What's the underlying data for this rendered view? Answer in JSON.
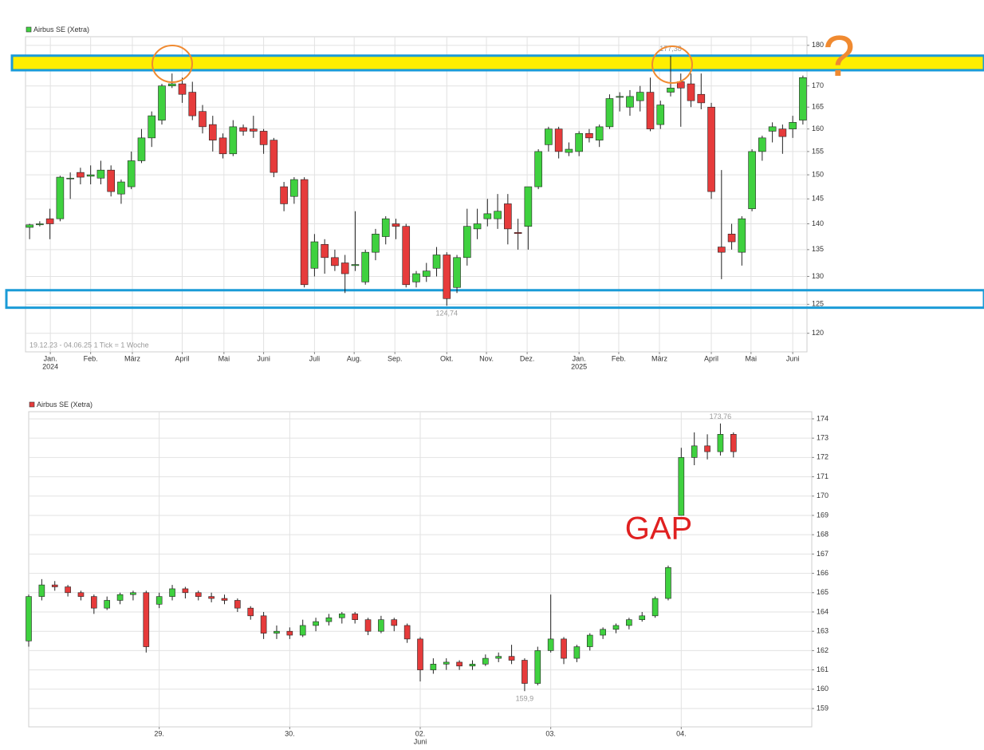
{
  "chart_data": [
    {
      "type": "candlestick",
      "legend": "Airbus SE (Xetra)",
      "legend_color": "#3fd13f",
      "note": "19.12.23 - 04.06.25   1 Tick = 1 Woche",
      "marker": "?",
      "up_color": "#3fd13f",
      "down_color": "#e63b3b",
      "grid": true,
      "log": true,
      "xlim": [
        -0.4,
        76.4
      ],
      "ylim": [
        116.9,
        182.2
      ],
      "yticks": [
        120,
        125,
        130,
        135,
        140,
        145,
        150,
        155,
        160,
        165,
        170,
        175,
        180
      ],
      "xticks": [
        {
          "value": 2.04,
          "label": "Jan."
        },
        {
          "value": 6.0,
          "label": "Feb."
        },
        {
          "value": 10.1,
          "label": "März"
        },
        {
          "value": 15.0,
          "label": "April"
        },
        {
          "value": 19.1,
          "label": "Mai"
        },
        {
          "value": 23.0,
          "label": "Juni"
        },
        {
          "value": 28.0,
          "label": "Juli"
        },
        {
          "value": 31.9,
          "label": "Aug."
        },
        {
          "value": 35.9,
          "label": "Sep."
        },
        {
          "value": 41.0,
          "label": "Okt."
        },
        {
          "value": 44.9,
          "label": "Nov."
        },
        {
          "value": 48.9,
          "label": "Dez."
        },
        {
          "value": 54.0,
          "label": "Jan."
        },
        {
          "value": 57.9,
          "label": "Feb."
        },
        {
          "value": 61.9,
          "label": "März"
        },
        {
          "value": 67.0,
          "label": "April"
        },
        {
          "value": 70.9,
          "label": "Mai"
        },
        {
          "value": 75.0,
          "label": "Juni"
        }
      ],
      "xticks_sub": [
        {
          "value": 2.04,
          "label": "2024"
        },
        {
          "value": 54.0,
          "label": "2025"
        }
      ],
      "open": [
        139.3,
        139.8,
        141,
        141,
        149.3,
        150.5,
        149.7,
        149.3,
        151,
        146,
        147.5,
        153,
        158,
        162,
        170,
        170.5,
        168.5,
        164,
        161,
        158,
        154.5,
        160.3,
        160,
        159.5,
        157.5,
        147.5,
        145.5,
        149,
        131.5,
        136,
        133.5,
        132.5,
        132,
        129,
        134.5,
        137.5,
        140,
        139.5,
        129,
        130,
        131.5,
        134,
        128,
        133.5,
        139,
        141,
        141,
        144,
        138.3,
        139.5,
        147.5,
        156.5,
        160,
        154.8,
        155,
        159,
        157.5,
        160.5,
        167.3,
        165,
        166.5,
        168.5,
        161,
        168.5,
        171,
        170.5,
        168,
        165,
        135.5,
        138,
        134.5,
        143,
        155,
        159.5,
        160,
        160,
        162
      ],
      "high": [
        140,
        140.5,
        143,
        149.8,
        150.5,
        151.5,
        152,
        153,
        152,
        149,
        155,
        160,
        164,
        170.5,
        173,
        172,
        171,
        165.5,
        163,
        159,
        162,
        161,
        163,
        160,
        158,
        148.5,
        149.5,
        149.5,
        138,
        137,
        135,
        134,
        142.5,
        135,
        139,
        141.5,
        141,
        140,
        131,
        132.5,
        135.5,
        134.5,
        134,
        143,
        143,
        145,
        146,
        146,
        141,
        147.5,
        155.5,
        160.5,
        160.5,
        157,
        159.5,
        160,
        161,
        168,
        168.5,
        169,
        170,
        172,
        166.5,
        177.38,
        173,
        173,
        173,
        166,
        151,
        140,
        141.5,
        155.5,
        158.5,
        161.5,
        161,
        163,
        172.5
      ],
      "low": [
        137,
        139.5,
        137,
        140.5,
        145,
        148,
        148,
        148,
        145.5,
        144,
        147,
        152.5,
        156,
        161,
        169.5,
        166,
        162,
        159,
        155,
        153.5,
        154,
        158.5,
        158,
        154.5,
        149.5,
        142.5,
        144,
        128,
        130,
        130.5,
        131,
        127,
        131,
        128.5,
        133,
        136,
        137,
        128,
        128,
        129,
        130,
        124.74,
        127,
        132,
        137,
        139.5,
        139,
        136,
        135,
        135,
        147,
        155,
        153.5,
        154,
        154,
        157,
        156,
        160,
        164,
        163,
        164,
        159.5,
        160,
        167.5,
        160.5,
        165,
        164.5,
        145,
        129.5,
        135,
        132,
        142.5,
        153,
        157,
        154.5,
        158,
        161
      ],
      "close": [
        139.8,
        140,
        140,
        149.5,
        149.3,
        149.5,
        150,
        151,
        146.5,
        148.5,
        153,
        158,
        163,
        170,
        170.5,
        168,
        163,
        160.5,
        157.5,
        154.5,
        160.5,
        159.5,
        159.5,
        156.5,
        150.5,
        144,
        149,
        128.5,
        136.5,
        133.5,
        132,
        130.5,
        132.2,
        134.5,
        138,
        141,
        139.5,
        128.5,
        130.5,
        131,
        134,
        126,
        133.5,
        139.5,
        140,
        142,
        142.5,
        139,
        138.1,
        147.5,
        155,
        160,
        155,
        155.5,
        159,
        158,
        160.5,
        167,
        167.5,
        167.5,
        168.5,
        160,
        165.5,
        169.5,
        169.5,
        166.5,
        166,
        146.5,
        134.5,
        136.5,
        141,
        155,
        158,
        160.5,
        158.3,
        161.5,
        172
      ],
      "annotations": [
        {
          "index": 63,
          "label": "177,38",
          "position": "above"
        },
        {
          "index": 41,
          "label": "124,74",
          "position": "below"
        }
      ],
      "band_color": "#1a9bd7",
      "bands": [
        {
          "range": [
            173.8,
            177.4
          ],
          "fill": "#ffee00"
        },
        {
          "range": [
            124.4,
            127.5
          ],
          "fill": "none"
        }
      ]
    },
    {
      "type": "candlestick",
      "legend": "Airbus SE (Xetra)",
      "legend_color": "#e63b3b",
      "callout": "GAP",
      "up_color": "#3fd13f",
      "down_color": "#e63b3b",
      "grid": true,
      "log": false,
      "xlim": [
        0,
        6
      ],
      "ylim": [
        158.05,
        174.37
      ],
      "yticks": [
        159,
        160,
        161,
        162,
        163,
        164,
        165,
        166,
        167,
        168,
        169,
        170,
        171,
        172,
        173,
        174
      ],
      "xticks": [
        {
          "value": 1,
          "label": "29."
        },
        {
          "value": 2,
          "label": "30."
        },
        {
          "value": 3,
          "label": "02."
        },
        {
          "value": 4,
          "label": "03."
        },
        {
          "value": 5,
          "label": "04."
        }
      ],
      "xticks_sub": [
        {
          "value": 3,
          "label": "Juni"
        }
      ],
      "x": [
        0,
        0.1,
        0.2,
        0.3,
        0.4,
        0.5,
        0.6,
        0.7,
        0.8,
        0.9,
        1,
        1.1,
        1.2,
        1.3,
        1.4,
        1.5,
        1.6,
        1.7,
        1.8,
        1.9,
        2,
        2.1,
        2.2,
        2.3,
        2.4,
        2.5,
        2.6,
        2.7,
        2.8,
        2.9,
        3,
        3.1,
        3.2,
        3.3,
        3.4,
        3.5,
        3.6,
        3.7,
        3.8,
        3.9,
        4,
        4.1,
        4.2,
        4.3,
        4.4,
        4.5,
        4.6,
        4.7,
        4.8,
        4.9,
        5,
        5.1,
        5.2,
        5.3,
        5.4
      ],
      "open": [
        162.5,
        164.8,
        165.4,
        165.3,
        165.0,
        164.8,
        164.2,
        164.6,
        164.9,
        165.0,
        164.4,
        164.8,
        165.2,
        165.0,
        164.8,
        164.7,
        164.6,
        164.2,
        163.8,
        162.9,
        163.0,
        162.8,
        163.3,
        163.5,
        163.7,
        163.9,
        163.6,
        163.0,
        163.6,
        163.3,
        162.6,
        161.0,
        161.3,
        161.4,
        161.2,
        161.3,
        161.6,
        161.7,
        161.5,
        160.3,
        162.0,
        162.6,
        161.6,
        162.2,
        162.8,
        163.1,
        163.3,
        163.6,
        163.8,
        164.7,
        169.0,
        172.0,
        172.6,
        172.3,
        173.2
      ],
      "high": [
        164.9,
        165.7,
        165.6,
        165.4,
        165.1,
        164.9,
        164.8,
        165.0,
        165.1,
        165.1,
        165.0,
        165.4,
        165.3,
        165.1,
        165.0,
        164.9,
        164.7,
        164.3,
        164.0,
        163.3,
        163.2,
        163.6,
        163.7,
        163.9,
        164.0,
        164.0,
        163.7,
        163.8,
        163.7,
        163.4,
        162.7,
        161.6,
        161.6,
        161.5,
        161.5,
        161.8,
        161.9,
        162.3,
        161.6,
        162.2,
        164.9,
        162.7,
        162.3,
        162.9,
        163.2,
        163.4,
        163.7,
        164.0,
        164.8,
        166.4,
        172.5,
        173.3,
        173.2,
        173.76,
        173.3
      ],
      "low": [
        162.2,
        164.6,
        165.1,
        164.8,
        164.6,
        163.9,
        164.1,
        164.4,
        164.6,
        161.9,
        164.2,
        164.6,
        164.7,
        164.6,
        164.5,
        164.4,
        164.0,
        163.6,
        162.6,
        162.6,
        162.6,
        162.7,
        163.0,
        163.3,
        163.4,
        163.4,
        162.8,
        162.9,
        163.0,
        162.4,
        160.4,
        160.8,
        161.0,
        161.0,
        161.0,
        161.2,
        161.4,
        161.3,
        159.9,
        160.2,
        161.9,
        161.3,
        161.4,
        162.0,
        162.6,
        162.9,
        163.1,
        163.5,
        163.7,
        164.6,
        169.0,
        171.6,
        171.9,
        172.1,
        172.0
      ],
      "close": [
        164.8,
        165.4,
        165.3,
        165.0,
        164.8,
        164.2,
        164.6,
        164.9,
        165.0,
        162.2,
        164.8,
        165.2,
        165.0,
        164.8,
        164.7,
        164.6,
        164.2,
        163.8,
        162.9,
        163.0,
        162.8,
        163.3,
        163.5,
        163.7,
        163.9,
        163.6,
        163.0,
        163.6,
        163.3,
        162.6,
        161.0,
        161.3,
        161.4,
        161.2,
        161.3,
        161.6,
        161.7,
        161.5,
        160.3,
        162.0,
        162.6,
        161.6,
        162.2,
        162.8,
        163.1,
        163.3,
        163.6,
        163.8,
        164.7,
        166.3,
        172.0,
        172.6,
        172.3,
        173.2,
        172.3
      ],
      "annotations": [
        {
          "index": 53,
          "label": "173,76",
          "position": "above"
        },
        {
          "index": 38,
          "label": "159,9",
          "position": "below"
        }
      ]
    }
  ]
}
